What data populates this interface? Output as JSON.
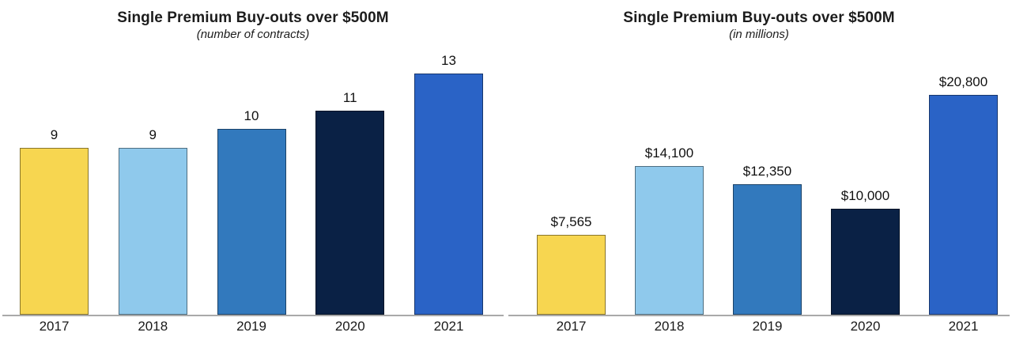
{
  "chart_data": [
    {
      "type": "bar",
      "title": "Single Premium Buy-outs over $500M",
      "subtitle": "(number of contracts)",
      "categories": [
        "2017",
        "2018",
        "2019",
        "2020",
        "2021"
      ],
      "values": [
        9,
        9,
        10,
        11,
        13
      ],
      "value_labels": [
        "9",
        "9",
        "10",
        "11",
        "13"
      ],
      "bar_colors": [
        "#f7d650",
        "#8fc9ec",
        "#3279bd",
        "#0a2145",
        "#2a63c6"
      ],
      "ylim": [
        0,
        14.7
      ],
      "xlabel": "",
      "ylabel": "",
      "grid": false,
      "legend": "none"
    },
    {
      "type": "bar",
      "title": "Single Premium Buy-outs over $500M",
      "subtitle": "(in millions)",
      "categories": [
        "2017",
        "2018",
        "2019",
        "2020",
        "2021"
      ],
      "values": [
        7565,
        14100,
        12350,
        10000,
        20800
      ],
      "value_labels": [
        "$7,565",
        "$14,100",
        "$12,350",
        "$10,000",
        "$20,800"
      ],
      "bar_colors": [
        "#f7d650",
        "#8fc9ec",
        "#3279bd",
        "#0a2145",
        "#2a63c6"
      ],
      "ylim": [
        0,
        25800
      ],
      "xlabel": "",
      "ylabel": "",
      "grid": false,
      "legend": "none"
    }
  ],
  "style": {
    "axis_line_color": "#a9a9a9",
    "text_color": "#1a1a1a",
    "background": "#ffffff"
  }
}
